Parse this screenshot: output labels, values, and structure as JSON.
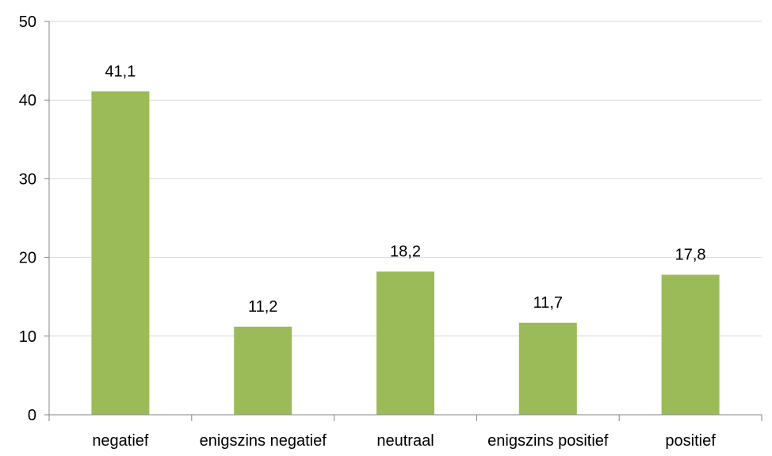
{
  "chart_data": {
    "type": "bar",
    "title": "",
    "xlabel": "",
    "ylabel": "",
    "categories": [
      "negatief",
      "enigszins negatief",
      "neutraal",
      "enigszins positief",
      "positief"
    ],
    "values": [
      41.1,
      11.2,
      18.2,
      11.7,
      17.8
    ],
    "data_labels": [
      "41,1",
      "11,2",
      "18,2",
      "11,7",
      "17,8"
    ],
    "ylim": [
      0,
      50
    ],
    "yticks": [
      0,
      10,
      20,
      30,
      40,
      50
    ],
    "grid": true,
    "legend": "none",
    "colors": {
      "bar": "#9bbb59",
      "grid": "#d9d9d9",
      "axis": "#868686"
    }
  }
}
